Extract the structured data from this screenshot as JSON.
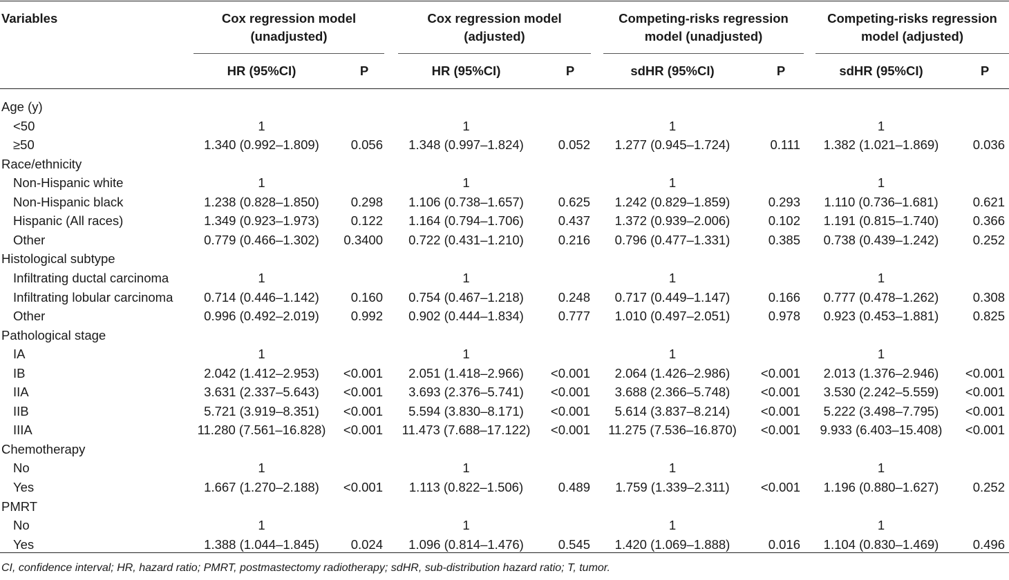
{
  "header": {
    "variables": "Variables",
    "groups": [
      {
        "line1": "Cox regression model",
        "line2": "(unadjusted)",
        "hr": "HR (95%CI)",
        "p": "P"
      },
      {
        "line1": "Cox regression model",
        "line2": "(adjusted)",
        "hr": "HR (95%CI)",
        "p": "P"
      },
      {
        "line1": "Competing-risks regression",
        "line2": "model (unadjusted)",
        "hr": "sdHR (95%CI)",
        "p": "P"
      },
      {
        "line1": "Competing-risks regression",
        "line2": "model (adjusted)",
        "hr": "sdHR (95%CI)",
        "p": "P"
      }
    ]
  },
  "rows": [
    {
      "label": "Age (y)",
      "indent": false,
      "cells": [
        "",
        "",
        "",
        "",
        "",
        "",
        "",
        ""
      ]
    },
    {
      "label": "<50",
      "indent": true,
      "cells": [
        "1",
        "",
        "1",
        "",
        "1",
        "",
        "1",
        ""
      ]
    },
    {
      "label": "≥50",
      "indent": true,
      "cells": [
        "1.340 (0.992–1.809)",
        "0.056",
        "1.348 (0.997–1.824)",
        "0.052",
        "1.277 (0.945–1.724)",
        "0.111",
        "1.382 (1.021–1.869)",
        "0.036"
      ]
    },
    {
      "label": "Race/ethnicity",
      "indent": false,
      "cells": [
        "",
        "",
        "",
        "",
        "",
        "",
        "",
        ""
      ]
    },
    {
      "label": "Non-Hispanic white",
      "indent": true,
      "cells": [
        "1",
        "",
        "1",
        "",
        "1",
        "",
        "1",
        ""
      ]
    },
    {
      "label": "Non-Hispanic black",
      "indent": true,
      "cells": [
        "1.238 (0.828–1.850)",
        "0.298",
        "1.106 (0.738–1.657)",
        "0.625",
        "1.242 (0.829–1.859)",
        "0.293",
        "1.110 (0.736–1.681)",
        "0.621"
      ]
    },
    {
      "label": "Hispanic (All races)",
      "indent": true,
      "cells": [
        "1.349 (0.923–1.973)",
        "0.122",
        "1.164 (0.794–1.706)",
        "0.437",
        "1.372 (0.939–2.006)",
        "0.102",
        "1.191 (0.815–1.740)",
        "0.366"
      ]
    },
    {
      "label": "Other",
      "indent": true,
      "cells": [
        "0.779 (0.466–1.302)",
        "0.3400",
        "0.722 (0.431–1.210)",
        "0.216",
        "0.796 (0.477–1.331)",
        "0.385",
        "0.738 (0.439–1.242)",
        "0.252"
      ]
    },
    {
      "label": "Histological subtype",
      "indent": false,
      "cells": [
        "",
        "",
        "",
        "",
        "",
        "",
        "",
        ""
      ]
    },
    {
      "label": "Infiltrating ductal carcinoma",
      "indent": true,
      "cells": [
        "1",
        "",
        "1",
        "",
        "1",
        "",
        "1",
        ""
      ]
    },
    {
      "label": "Infiltrating lobular carcinoma",
      "indent": true,
      "cells": [
        "0.714 (0.446–1.142)",
        "0.160",
        "0.754 (0.467–1.218)",
        "0.248",
        "0.717 (0.449–1.147)",
        "0.166",
        "0.777 (0.478–1.262)",
        "0.308"
      ]
    },
    {
      "label": "Other",
      "indent": true,
      "cells": [
        "0.996 (0.492–2.019)",
        "0.992",
        "0.902 (0.444–1.834)",
        "0.777",
        "1.010 (0.497–2.051)",
        "0.978",
        "0.923 (0.453–1.881)",
        "0.825"
      ]
    },
    {
      "label": "Pathological stage",
      "indent": false,
      "cells": [
        "",
        "",
        "",
        "",
        "",
        "",
        "",
        ""
      ]
    },
    {
      "label": "IA",
      "indent": true,
      "cells": [
        "1",
        "",
        "1",
        "",
        "1",
        "",
        "1",
        ""
      ]
    },
    {
      "label": "IB",
      "indent": true,
      "cells": [
        "2.042 (1.412–2.953)",
        "<0.001",
        "2.051 (1.418–2.966)",
        "<0.001",
        "2.064 (1.426–2.986)",
        "<0.001",
        "2.013 (1.376–2.946)",
        "<0.001"
      ]
    },
    {
      "label": "IIA",
      "indent": true,
      "cells": [
        "3.631 (2.337–5.643)",
        "<0.001",
        "3.693 (2.376–5.741)",
        "<0.001",
        "3.688 (2.366–5.748)",
        "<0.001",
        "3.530 (2.242–5.559)",
        "<0.001"
      ]
    },
    {
      "label": "IIB",
      "indent": true,
      "cells": [
        "5.721 (3.919–8.351)",
        "<0.001",
        "5.594 (3.830–8.171)",
        "<0.001",
        "5.614 (3.837–8.214)",
        "<0.001",
        "5.222 (3.498–7.795)",
        "<0.001"
      ]
    },
    {
      "label": "IIIA",
      "indent": true,
      "cells": [
        "11.280 (7.561–16.828)",
        "<0.001",
        "11.473 (7.688–17.122)",
        "<0.001",
        "11.275 (7.536–16.870)",
        "<0.001",
        "9.933 (6.403–15.408)",
        "<0.001"
      ]
    },
    {
      "label": "Chemotherapy",
      "indent": false,
      "cells": [
        "",
        "",
        "",
        "",
        "",
        "",
        "",
        ""
      ]
    },
    {
      "label": "No",
      "indent": true,
      "cells": [
        "1",
        "",
        "1",
        "",
        "1",
        "",
        "1",
        ""
      ]
    },
    {
      "label": "Yes",
      "indent": true,
      "cells": [
        "1.667 (1.270–2.188)",
        "<0.001",
        "1.113 (0.822–1.506)",
        "0.489",
        "1.759 (1.339–2.311)",
        "<0.001",
        "1.196 (0.880–1.627)",
        "0.252"
      ]
    },
    {
      "label": "PMRT",
      "indent": false,
      "cells": [
        "",
        "",
        "",
        "",
        "",
        "",
        "",
        ""
      ]
    },
    {
      "label": "No",
      "indent": true,
      "cells": [
        "1",
        "",
        "1",
        "",
        "1",
        "",
        "1",
        ""
      ]
    },
    {
      "label": "Yes",
      "indent": true,
      "cells": [
        "1.388 (1.044–1.845)",
        "0.024",
        "1.096 (0.814–1.476)",
        "0.545",
        "1.420 (1.069–1.888)",
        "0.016",
        "1.104 (0.830–1.469)",
        "0.496"
      ]
    }
  ],
  "footnote": "CI, confidence interval; HR, hazard ratio; PMRT, postmastectomy radiotherapy; sdHR, sub-distribution hazard ratio; T, tumor."
}
